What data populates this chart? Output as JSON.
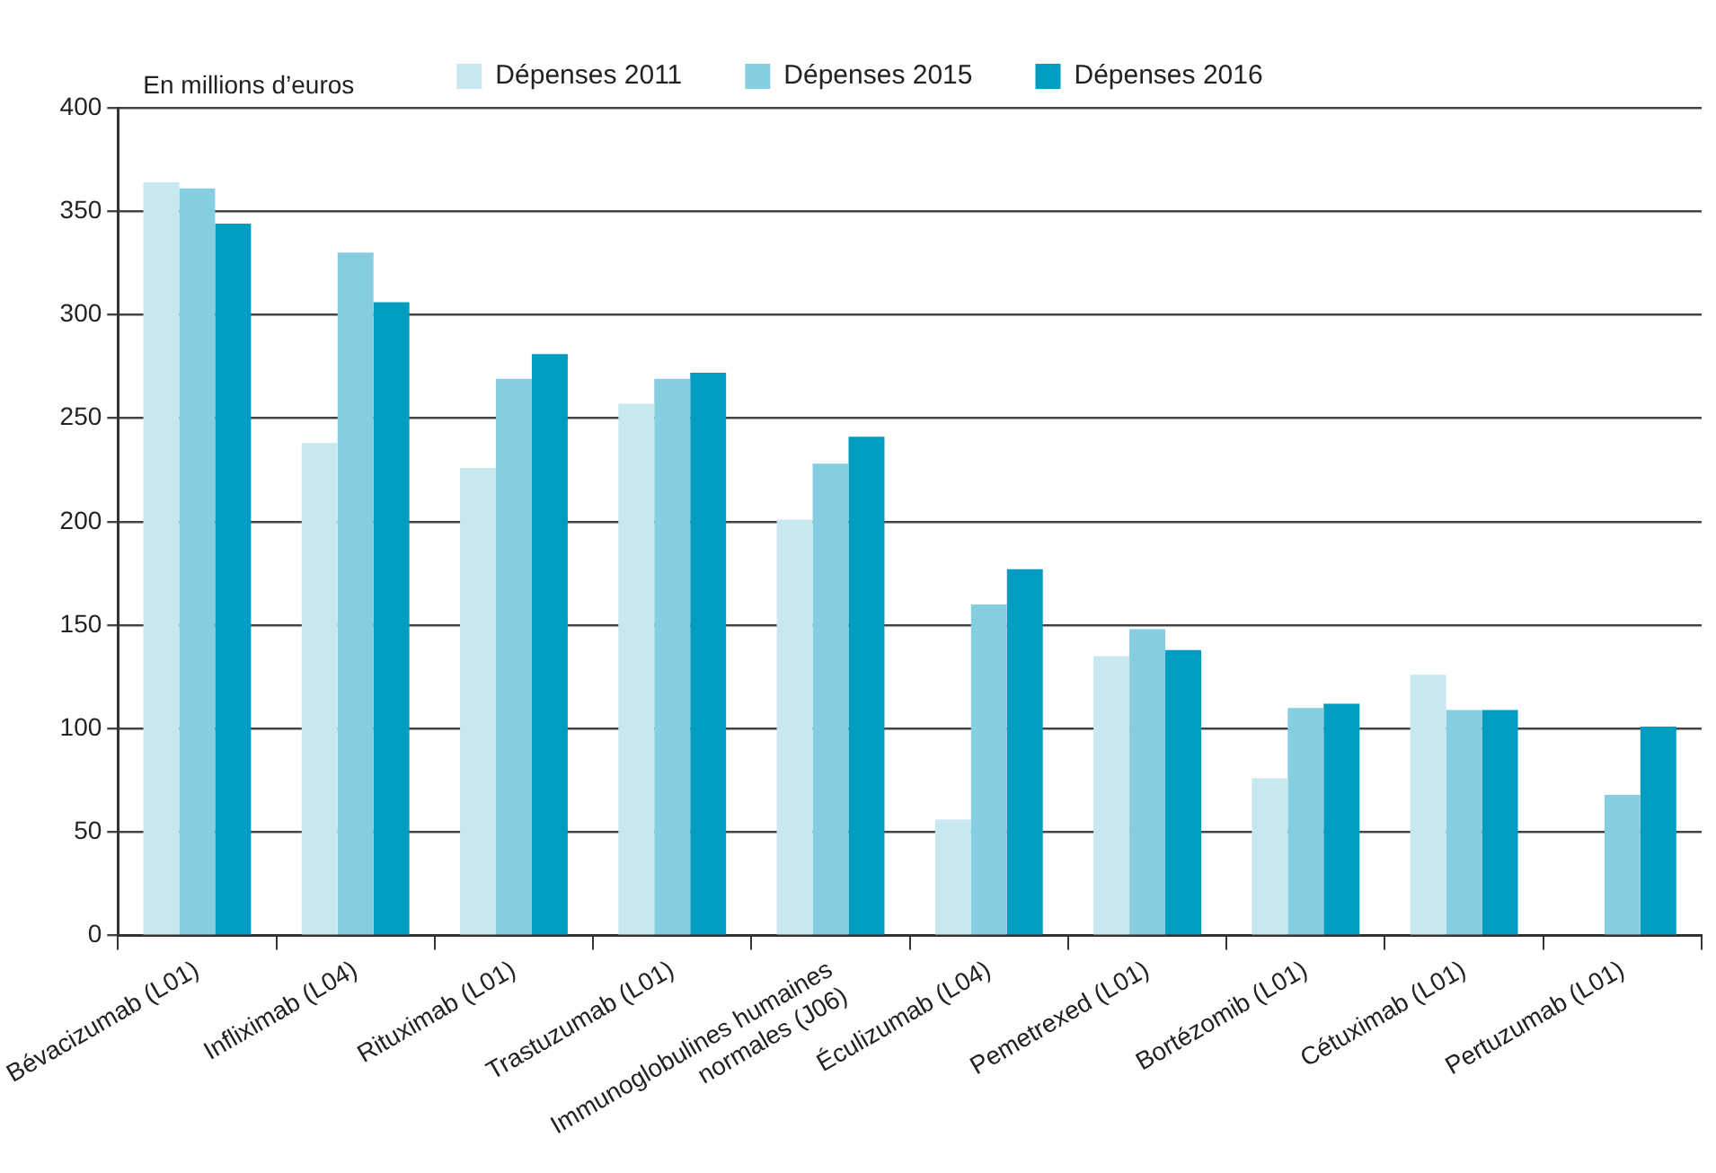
{
  "chart_data": {
    "type": "bar",
    "ylabel": "En millions d’euros",
    "categories": [
      "Bévacizumab (L01)",
      "Infliximab (L04)",
      "Rituximab (L01)",
      "Trastuzumab (L01)",
      "Immunoglobulines humaines\nnormales (J06)",
      "Éculizumab (L04)",
      "Pemetrexed (L01)",
      "Bortézomib (L01)",
      "Cétuximab (L01)",
      "Pertuzumab (L01)"
    ],
    "series": [
      {
        "name": "Dépenses 2011",
        "color": "#c8e8f0",
        "values": [
          364,
          238,
          226,
          257,
          201,
          56,
          135,
          76,
          126,
          null
        ]
      },
      {
        "name": "Dépenses 2015",
        "color": "#85cde0",
        "values": [
          361,
          330,
          269,
          269,
          228,
          160,
          148,
          110,
          109,
          68
        ]
      },
      {
        "name": "Dépenses 2016",
        "color": "#009dc2",
        "values": [
          344,
          306,
          281,
          272,
          241,
          177,
          138,
          112,
          109,
          101
        ]
      }
    ],
    "ylim": [
      0,
      400
    ],
    "yticks": [
      0,
      50,
      100,
      150,
      200,
      250,
      300,
      350,
      400
    ],
    "grid": "y",
    "legend": "top"
  }
}
